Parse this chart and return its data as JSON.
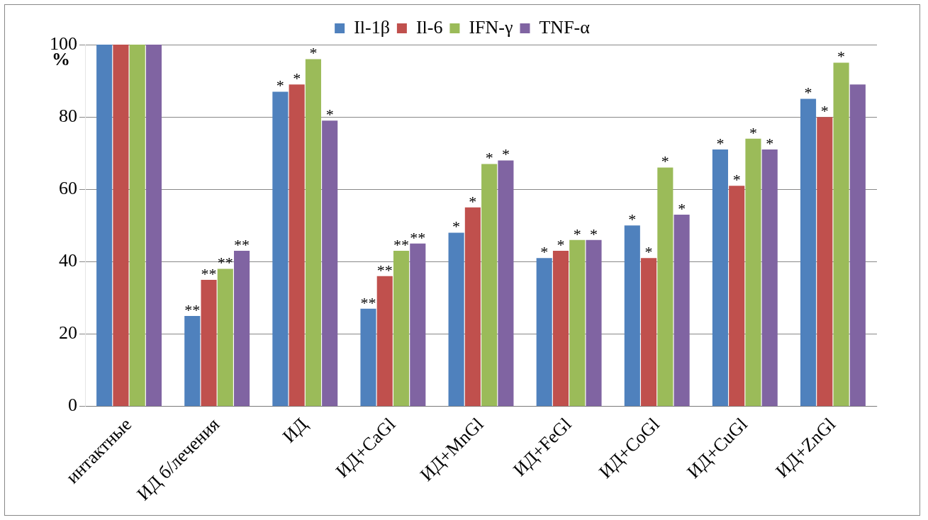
{
  "chart_data": {
    "type": "bar",
    "ylabel": "%",
    "categories": [
      "интактные",
      "ИД б/лечения",
      "ИД",
      "ИД+CaGl",
      "ИД+MnGl",
      "ИД+FeGl",
      "ИД+CoGl",
      "ИД+CuGl",
      "ИД+ZnGl"
    ],
    "series": [
      {
        "name": "Il-1β",
        "color": "#4f81bd",
        "values": [
          100,
          25,
          87,
          27,
          48,
          41,
          50,
          71,
          85
        ],
        "value_labels": [
          null,
          "**",
          "*",
          "**",
          "*",
          "*",
          "*",
          "*",
          "*"
        ]
      },
      {
        "name": "Il-6",
        "color": "#c0504d",
        "values": [
          100,
          35,
          89,
          36,
          55,
          43,
          41,
          61,
          80
        ],
        "value_labels": [
          null,
          "**",
          "*",
          "**",
          "*",
          "*",
          "*",
          "*",
          "*"
        ]
      },
      {
        "name": "IFN-γ",
        "color": "#9bbb59",
        "values": [
          100,
          38,
          96,
          43,
          67,
          46,
          66,
          74,
          95
        ],
        "value_labels": [
          null,
          "**",
          "*",
          "**",
          "*",
          "*",
          "*",
          "*",
          "*"
        ]
      },
      {
        "name": "TNF-α",
        "color": "#8064a2",
        "values": [
          100,
          43,
          79,
          45,
          68,
          46,
          53,
          71,
          89
        ],
        "value_labels": [
          null,
          "**",
          "*",
          "**",
          "*",
          "*",
          "*",
          "*",
          null
        ]
      }
    ],
    "ylim": [
      0,
      100
    ],
    "yticks": [
      0,
      20,
      40,
      60,
      80,
      100
    ],
    "grid": "y",
    "legend": "top"
  }
}
